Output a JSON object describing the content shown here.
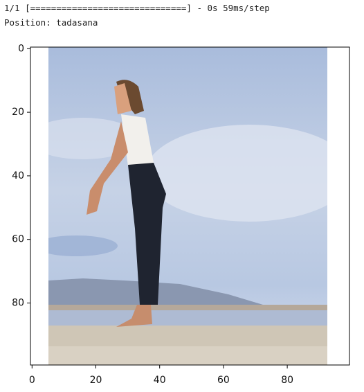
{
  "console": [
    "1/1 [==============================] - 0s 59ms/step",
    "Position: tadasana"
  ],
  "chart_data": {
    "type": "image",
    "xlim": [
      -0.5,
      99.5
    ],
    "ylim": [
      99.5,
      -0.5
    ],
    "xticks": [
      0,
      20,
      40,
      60,
      80
    ],
    "yticks": [
      0,
      20,
      40,
      60,
      80
    ]
  }
}
